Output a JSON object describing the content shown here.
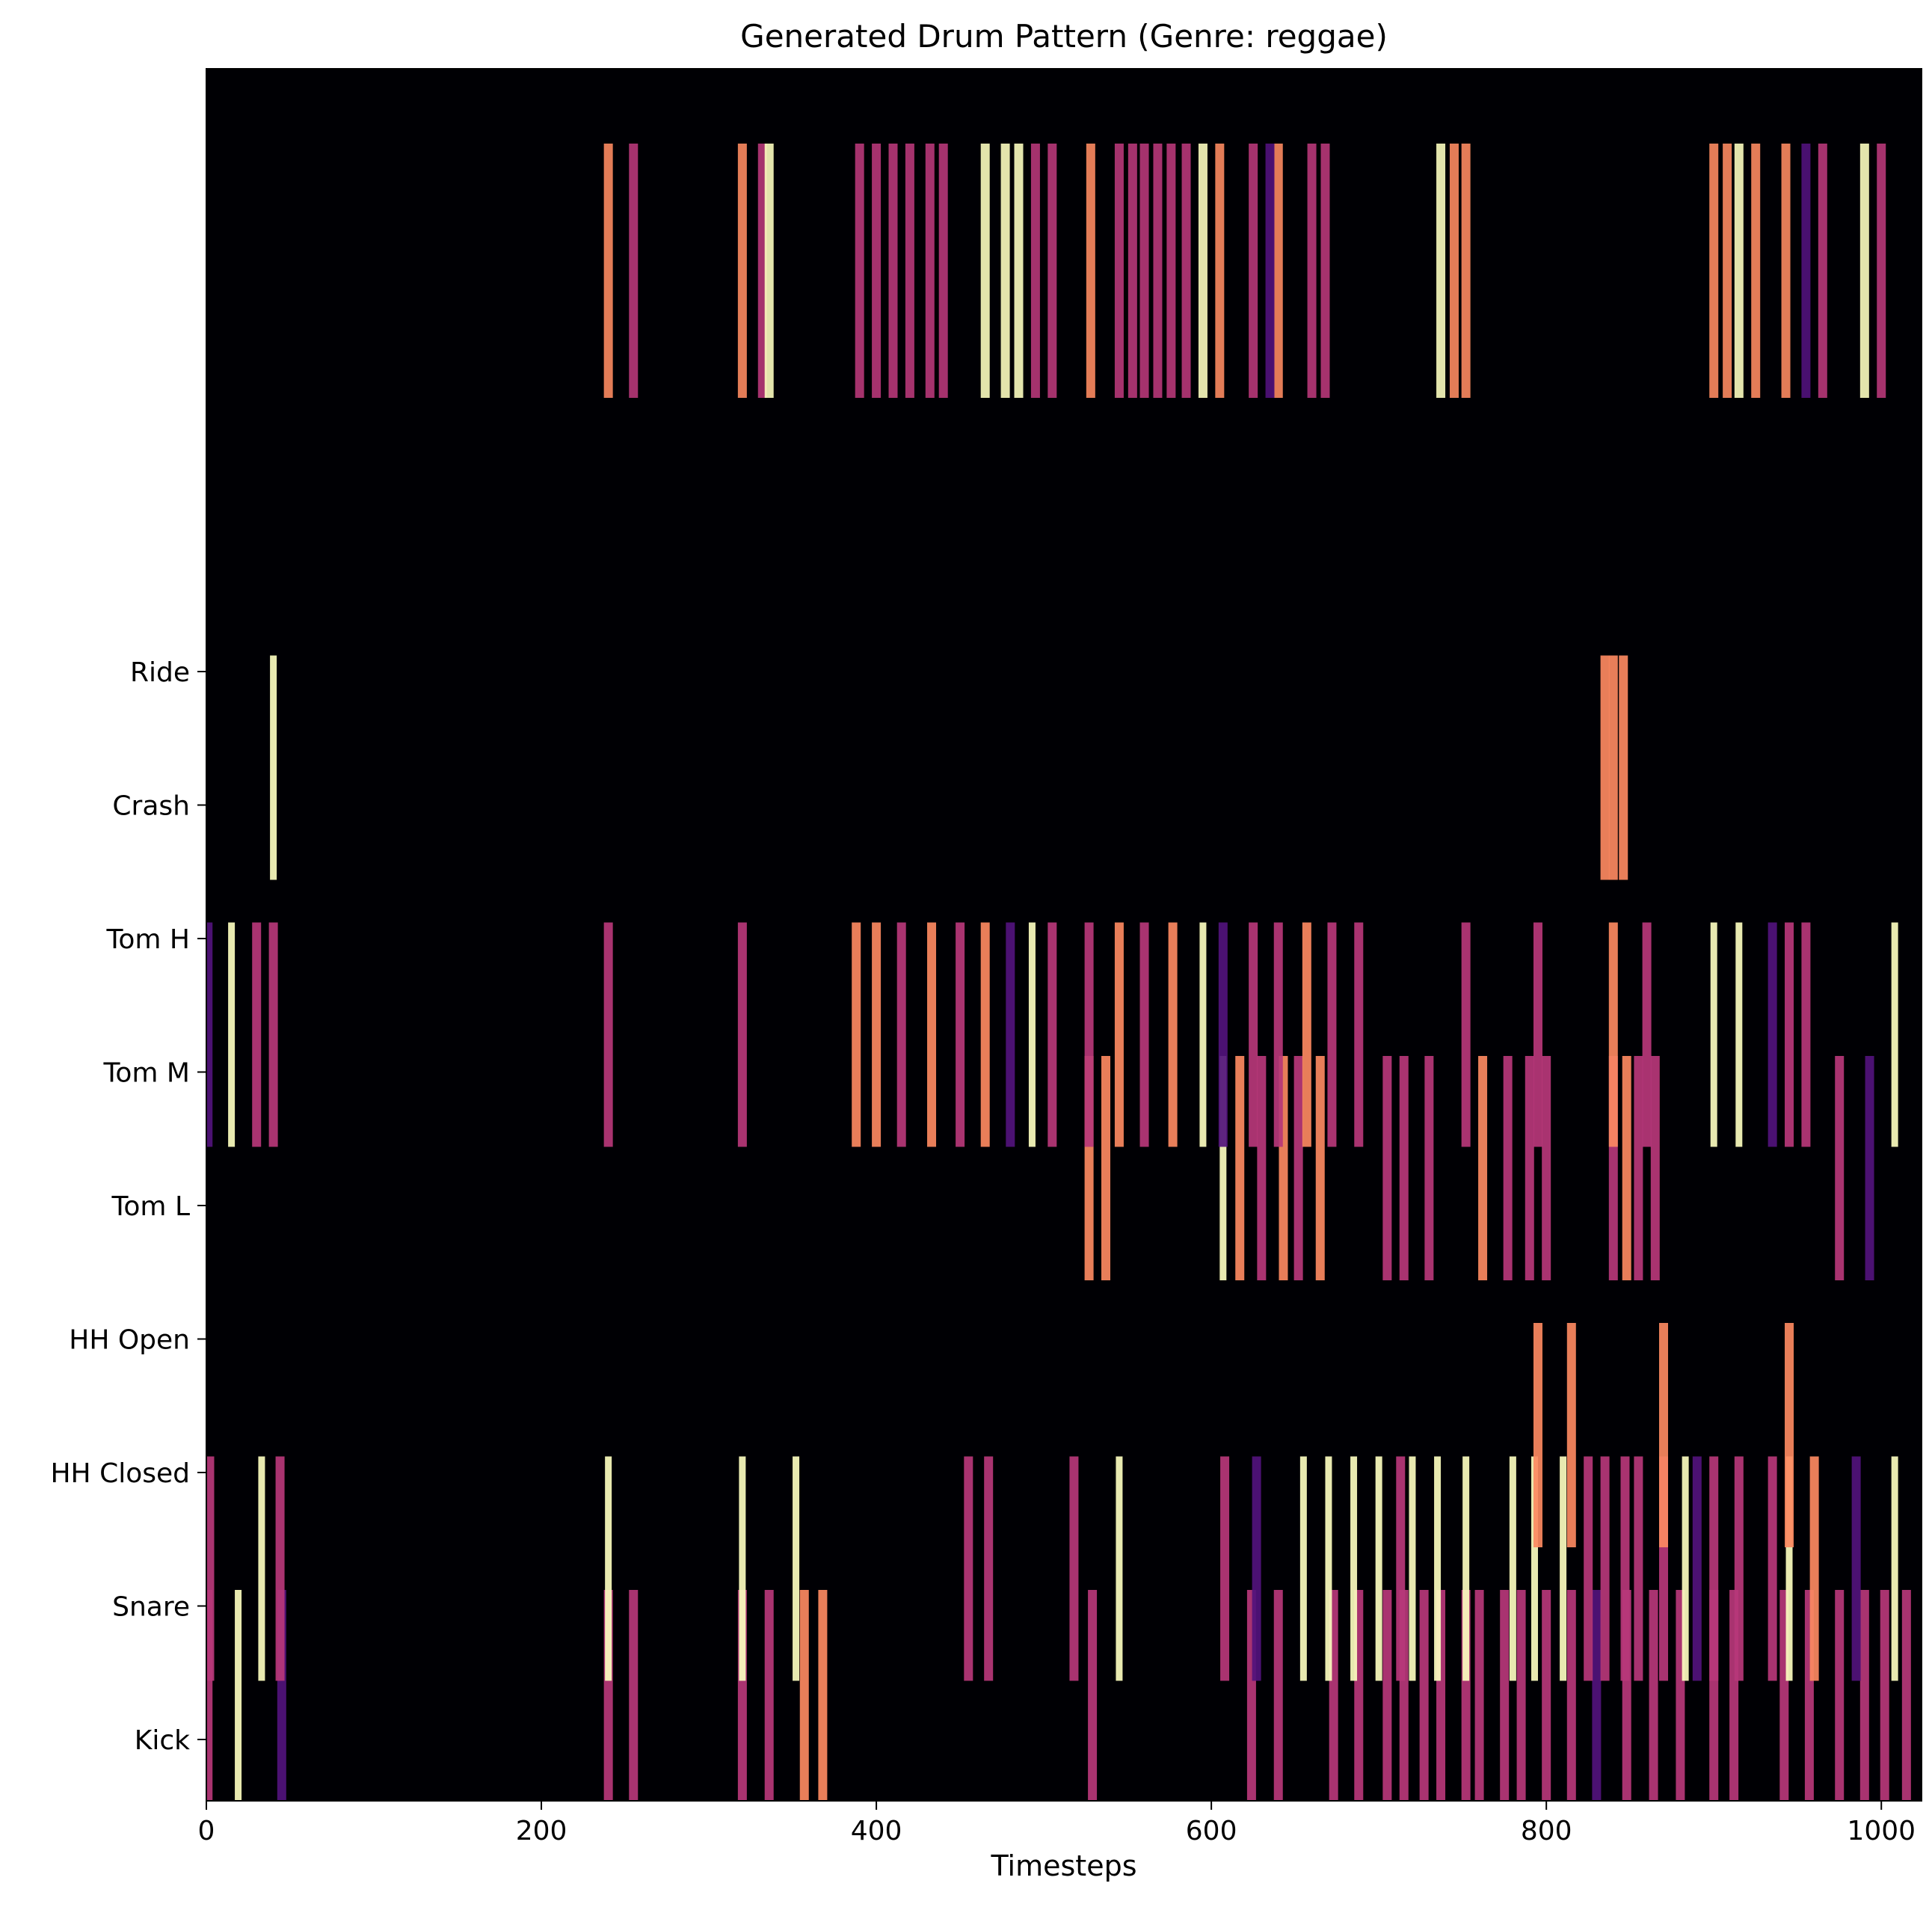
{
  "chart_data": {
    "type": "heatmap",
    "title": "Generated Drum Pattern (Genre: reggae)",
    "xlabel": "Timesteps",
    "ylabel": "",
    "xlim": [
      0,
      1024
    ],
    "x_ticks": [
      0,
      200,
      400,
      600,
      800,
      1000
    ],
    "y_ticks": [
      "Ride",
      "Crash",
      "Tom H",
      "Tom M",
      "Tom L",
      "HH Open",
      "HH Closed",
      "Snare",
      "Kick"
    ],
    "grid": false,
    "colormap": "magma",
    "background_color": "#000004",
    "velocity_colors": [
      "#51127c",
      "#b73779",
      "#fc8961",
      "#fcfdbf"
    ],
    "hits": [
      {
        "row": "Kick",
        "events": [
          [
            1,
            0.55
          ],
          [
            19,
            1.0
          ],
          [
            45,
            0.3
          ],
          [
            240,
            0.6
          ],
          [
            255,
            0.6
          ],
          [
            320,
            0.6
          ],
          [
            336,
            0.6
          ],
          [
            357,
            0.85
          ],
          [
            368,
            0.85
          ],
          [
            529,
            0.6
          ],
          [
            624,
            0.6
          ],
          [
            640,
            0.6
          ],
          [
            673,
            0.6
          ],
          [
            688,
            0.6
          ],
          [
            705,
            0.6
          ],
          [
            715,
            0.6
          ],
          [
            727,
            0.6
          ],
          [
            737,
            0.6
          ],
          [
            752,
            0.6
          ],
          [
            760,
            0.6
          ],
          [
            775,
            0.6
          ],
          [
            785,
            0.6
          ],
          [
            800,
            0.6
          ],
          [
            815,
            0.6
          ],
          [
            830,
            0.3
          ],
          [
            848,
            0.6
          ],
          [
            864,
            0.6
          ],
          [
            880,
            0.6
          ],
          [
            900,
            0.6
          ],
          [
            912,
            0.6
          ],
          [
            942,
            0.6
          ],
          [
            957,
            0.6
          ],
          [
            975,
            0.6
          ],
          [
            990,
            0.6
          ],
          [
            1002,
            0.6
          ],
          [
            1015,
            0.6
          ]
        ]
      },
      {
        "row": "Snare",
        "events": [
          [
            2,
            0.55
          ],
          [
            33,
            0.95
          ],
          [
            44,
            0.6
          ],
          [
            240,
            0.95
          ],
          [
            320,
            0.95
          ],
          [
            352,
            0.95
          ],
          [
            455,
            0.6
          ],
          [
            467,
            0.6
          ],
          [
            518,
            0.6
          ],
          [
            545,
            0.95
          ],
          [
            608,
            0.6
          ],
          [
            627,
            0.3
          ],
          [
            655,
            0.95
          ],
          [
            670,
            0.95
          ],
          [
            685,
            0.95
          ],
          [
            700,
            0.95
          ],
          [
            713,
            0.6
          ],
          [
            720,
            0.95
          ],
          [
            735,
            0.95
          ],
          [
            752,
            0.95
          ],
          [
            780,
            0.95
          ],
          [
            793,
            0.95
          ],
          [
            810,
            0.95
          ],
          [
            825,
            0.6
          ],
          [
            835,
            0.6
          ],
          [
            847,
            0.6
          ],
          [
            855,
            0.6
          ],
          [
            870,
            0.6
          ],
          [
            883,
            0.95
          ],
          [
            890,
            0.3
          ],
          [
            900,
            0.6
          ],
          [
            915,
            0.6
          ],
          [
            935,
            0.6
          ],
          [
            945,
            0.95
          ],
          [
            960,
            0.85
          ],
          [
            985,
            0.3
          ],
          [
            1008,
            0.95
          ]
        ]
      },
      {
        "row": "HH Closed",
        "events": [
          [
            795,
            0.85
          ],
          [
            815,
            0.85
          ],
          [
            870,
            0.85
          ],
          [
            945,
            0.85
          ]
        ]
      },
      {
        "row": "HH Open",
        "events": []
      },
      {
        "row": "Tom L",
        "events": [
          [
            527,
            0.85
          ],
          [
            537,
            0.85
          ],
          [
            607,
            0.95
          ],
          [
            617,
            0.85
          ],
          [
            630,
            0.6
          ],
          [
            643,
            0.85
          ],
          [
            652,
            0.6
          ],
          [
            665,
            0.85
          ],
          [
            705,
            0.6
          ],
          [
            715,
            0.6
          ],
          [
            730,
            0.6
          ],
          [
            762,
            0.85
          ],
          [
            777,
            0.6
          ],
          [
            790,
            0.6
          ],
          [
            800,
            0.6
          ],
          [
            840,
            0.6
          ],
          [
            848,
            0.85
          ],
          [
            855,
            0.6
          ],
          [
            865,
            0.6
          ],
          [
            975,
            0.6
          ],
          [
            993,
            0.3
          ]
        ]
      },
      {
        "row": "Tom M",
        "events": [
          [
            1,
            0.3
          ],
          [
            15,
            0.95
          ],
          [
            30,
            0.6
          ],
          [
            40,
            0.6
          ],
          [
            240,
            0.6
          ],
          [
            320,
            0.6
          ],
          [
            388,
            0.85
          ],
          [
            400,
            0.85
          ],
          [
            415,
            0.6
          ],
          [
            433,
            0.85
          ],
          [
            450,
            0.6
          ],
          [
            465,
            0.85
          ],
          [
            480,
            0.3
          ],
          [
            493,
            0.95
          ],
          [
            505,
            0.6
          ],
          [
            527,
            0.6
          ],
          [
            545,
            0.85
          ],
          [
            560,
            0.6
          ],
          [
            577,
            0.85
          ],
          [
            595,
            0.95
          ],
          [
            607,
            0.3
          ],
          [
            625,
            0.6
          ],
          [
            640,
            0.6
          ],
          [
            657,
            0.85
          ],
          [
            672,
            0.6
          ],
          [
            688,
            0.6
          ],
          [
            752,
            0.6
          ],
          [
            795,
            0.6
          ],
          [
            840,
            0.85
          ],
          [
            860,
            0.6
          ],
          [
            900,
            0.95
          ],
          [
            915,
            0.95
          ],
          [
            935,
            0.3
          ],
          [
            945,
            0.6
          ],
          [
            955,
            0.6
          ],
          [
            1008,
            0.95
          ]
        ]
      },
      {
        "row": "Tom H",
        "events": []
      },
      {
        "row": "Crash",
        "events": [
          [
            40,
            0.95
          ],
          [
            835,
            0.85
          ],
          [
            840,
            0.85
          ],
          [
            846,
            0.85
          ]
        ]
      },
      {
        "row": "Ride",
        "events": []
      }
    ],
    "upper_band_hits": [
      [
        240,
        0.85
      ],
      [
        255,
        0.6
      ],
      [
        320,
        0.85
      ],
      [
        332,
        0.6
      ],
      [
        336,
        0.95
      ],
      [
        390,
        0.6
      ],
      [
        400,
        0.6
      ],
      [
        410,
        0.6
      ],
      [
        420,
        0.6
      ],
      [
        432,
        0.6
      ],
      [
        440,
        0.6
      ],
      [
        465,
        0.95
      ],
      [
        477,
        0.95
      ],
      [
        485,
        0.95
      ],
      [
        495,
        0.6
      ],
      [
        505,
        0.6
      ],
      [
        528,
        0.85
      ],
      [
        545,
        0.6
      ],
      [
        553,
        0.6
      ],
      [
        560,
        0.6
      ],
      [
        568,
        0.6
      ],
      [
        576,
        0.6
      ],
      [
        585,
        0.6
      ],
      [
        595,
        0.95
      ],
      [
        605,
        0.85
      ],
      [
        625,
        0.6
      ],
      [
        640,
        0.85
      ],
      [
        635,
        0.3
      ],
      [
        660,
        0.6
      ],
      [
        668,
        0.6
      ],
      [
        737,
        0.95
      ],
      [
        745,
        0.85
      ],
      [
        752,
        0.85
      ],
      [
        900,
        0.85
      ],
      [
        908,
        0.85
      ],
      [
        915,
        0.95
      ],
      [
        925,
        0.85
      ],
      [
        943,
        0.85
      ],
      [
        955,
        0.3
      ],
      [
        965,
        0.6
      ],
      [
        990,
        0.95
      ],
      [
        1000,
        0.6
      ]
    ]
  }
}
